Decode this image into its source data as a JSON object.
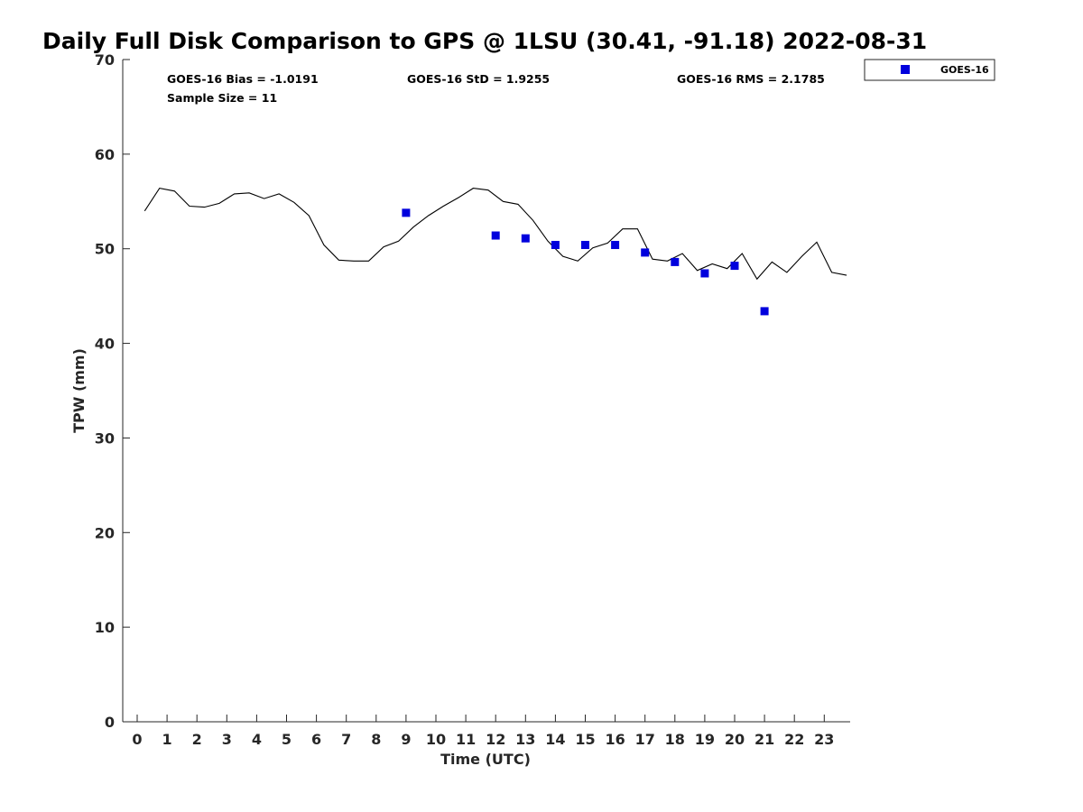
{
  "chart_data": {
    "type": "line+scatter",
    "title": "Daily Full Disk Comparison to GPS @ 1LSU (30.41, -91.18) 2022-08-31",
    "xlabel": "Time (UTC)",
    "ylabel": "TPW (mm)",
    "xlim": [
      -0.5,
      23.75
    ],
    "ylim": [
      0,
      70
    ],
    "x_ticks": [
      0,
      1,
      2,
      3,
      4,
      5,
      6,
      7,
      8,
      9,
      10,
      11,
      12,
      13,
      14,
      15,
      16,
      17,
      18,
      19,
      20,
      21,
      22,
      23
    ],
    "y_ticks": [
      0,
      10,
      20,
      30,
      40,
      50,
      60,
      70
    ],
    "grid": false,
    "legend_position": "top-right",
    "stats": {
      "bias": "GOES-16 Bias = -1.0191",
      "std": "GOES-16 StD = 1.9255",
      "rms": "GOES-16 RMS = 2.1785",
      "sample": "Sample Size = 11"
    },
    "series": [
      {
        "style": "line",
        "color": "#000000",
        "x": [
          0.25,
          0.75,
          1.25,
          1.75,
          2.25,
          2.75,
          3.25,
          3.75,
          4.25,
          4.75,
          5.25,
          5.75,
          6.25,
          6.75,
          7.25,
          7.75,
          8.25,
          8.75,
          9.25,
          9.75,
          10.25,
          10.75,
          11.25,
          11.75,
          12.25,
          12.75,
          13.25,
          13.75,
          14.25,
          14.75,
          15.25,
          15.75,
          16.25,
          16.75,
          17.25,
          17.75,
          18.25,
          18.75,
          19.25,
          19.75,
          20.25,
          20.75,
          21.25,
          21.75,
          22.25,
          22.75,
          23.25,
          23.75
        ],
        "values": [
          54.0,
          56.4,
          56.1,
          54.5,
          54.4,
          54.8,
          55.8,
          55.9,
          55.3,
          55.8,
          54.9,
          53.5,
          50.4,
          48.8,
          48.7,
          48.7,
          50.2,
          50.8,
          52.3,
          53.5,
          54.5,
          55.4,
          56.4,
          56.2,
          55.0,
          54.7,
          53.0,
          50.8,
          49.2,
          48.7,
          50.1,
          50.6,
          52.1,
          52.1,
          48.9,
          48.7,
          49.5,
          47.7,
          48.4,
          47.9,
          49.5,
          46.8,
          48.6,
          47.5,
          49.2,
          50.7,
          47.5,
          47.2
        ]
      },
      {
        "name": "GOES-16",
        "style": "scatter",
        "marker": "square",
        "color": "#0000dd",
        "x": [
          9,
          12,
          13,
          14,
          15,
          16,
          17,
          18,
          19,
          20,
          21
        ],
        "values": [
          53.8,
          51.4,
          51.1,
          50.4,
          50.4,
          50.4,
          49.6,
          48.6,
          47.4,
          48.2,
          43.4
        ]
      }
    ]
  }
}
